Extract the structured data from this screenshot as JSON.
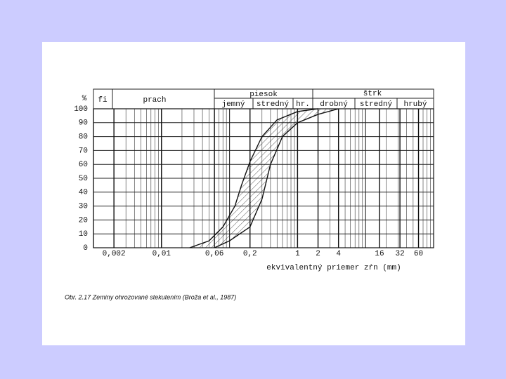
{
  "header": {
    "fi": "fi",
    "prach": "prach",
    "piesok": "piesok",
    "strk": "štrk",
    "jemny": "jemný",
    "stredny_piesok": "stredný",
    "hrube": "hr.",
    "drobny": "drobný",
    "stredny_strk": "stredný",
    "hruby": "hrubý"
  },
  "chart_data": {
    "type": "line",
    "title": "Obr. 2.17 Zeminy ohrozované stekutením (Broža et al., 1987)",
    "xlabel": "ekvivalentný priemer zŕn (mm)",
    "ylabel": "%",
    "xscale": "log",
    "xlim": [
      0.001,
      100
    ],
    "ylim": [
      0,
      100
    ],
    "xticks": [
      {
        "value": 0.002,
        "label": "0,002"
      },
      {
        "value": 0.01,
        "label": "0,01"
      },
      {
        "value": 0.06,
        "label": "0,06"
      },
      {
        "value": 0.2,
        "label": "0,2"
      },
      1,
      2,
      4,
      16,
      32,
      60
    ],
    "yticks": [
      0,
      10,
      20,
      30,
      40,
      50,
      60,
      70,
      80,
      90,
      100
    ],
    "grid": true,
    "series": [
      {
        "color": "#111111",
        "x": [
          0.026,
          0.05,
          0.08,
          0.12,
          0.15,
          0.2,
          0.3,
          0.5,
          1,
          2
        ],
        "values": [
          0,
          5,
          15,
          30,
          45,
          62,
          80,
          92,
          98,
          100
        ]
      },
      {
        "color": "#111111",
        "x": [
          0.06,
          0.1,
          0.2,
          0.3,
          0.4,
          0.6,
          1,
          2,
          4
        ],
        "values": [
          0,
          5,
          15,
          35,
          60,
          80,
          90,
          96,
          100
        ]
      }
    ]
  }
}
